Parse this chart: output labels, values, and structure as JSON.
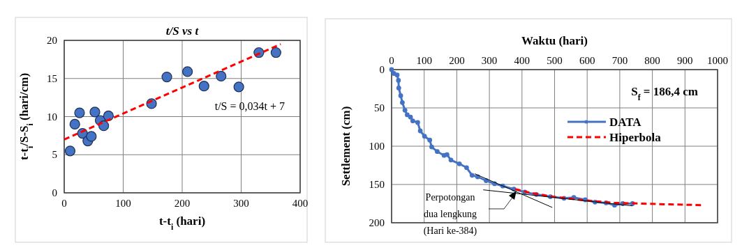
{
  "chart_data": [
    {
      "type": "scatter",
      "title": "t/S vs t",
      "xlabel": "t-t$_{i}$ (hari)",
      "ylabel": "t-t$_{i}$/S-S$_{i}$ (hari/cm)",
      "xlim": [
        0,
        400
      ],
      "xticks": [
        0,
        100,
        200,
        300,
        400
      ],
      "ylim": [
        0,
        20
      ],
      "yticks": [
        0,
        5,
        10,
        15,
        20
      ],
      "grid": true,
      "marker": "circle",
      "series": [
        {
          "color": "#4472c4",
          "x": [
            10,
            18,
            26,
            31,
            40,
            46,
            52,
            61,
            67,
            75,
            148,
            174,
            209,
            237,
            266,
            296,
            330,
            359
          ],
          "values": [
            5.5,
            9.0,
            10.5,
            7.8,
            6.8,
            7.4,
            10.6,
            9.5,
            8.8,
            10.1,
            11.7,
            15.2,
            15.9,
            14.0,
            15.3,
            13.9,
            18.4,
            18.4
          ]
        },
        {
          "type": "line",
          "color": "#ff0000",
          "line_style": "dashed",
          "marker": "none",
          "x": [
            0,
            367
          ],
          "values": [
            7,
            19.5
          ]
        }
      ],
      "annotations": [
        "t/S = 0,034t + 7"
      ]
    },
    {
      "type": "line",
      "xlabel": "Waktu (hari)",
      "ylabel": "Settlement (cm)",
      "xlim": [
        0,
        1000
      ],
      "xticks": [
        0,
        100,
        200,
        300,
        400,
        500,
        600,
        700,
        800,
        900,
        1000
      ],
      "ylim": [
        200,
        0
      ],
      "yticks": [
        0,
        50,
        100,
        150,
        200
      ],
      "grid": true,
      "legend": "right",
      "series": [
        {
          "name": "DATA",
          "color": "#4472c4",
          "marker": "circle",
          "line_style": "solid",
          "x": [
            0,
            7,
            17,
            21,
            22,
            28,
            33,
            41,
            48,
            58,
            65,
            80,
            88,
            101,
            117,
            123,
            140,
            161,
            170,
            182,
            208,
            230,
            247,
            264,
            290,
            316,
            341,
            375,
            409,
            444,
            487,
            529,
            559,
            594,
            624,
            658,
            684,
            709,
            739
          ],
          "values": [
            0,
            5,
            7,
            14,
            24,
            34,
            43,
            53,
            59,
            62,
            67,
            69,
            80,
            87,
            92,
            101,
            107,
            112,
            111,
            118,
            123,
            128,
            138,
            140,
            145,
            149,
            152,
            156,
            160,
            163,
            166,
            168,
            167,
            170,
            173,
            174,
            177,
            175,
            175
          ]
        },
        {
          "name": "Hiperbola",
          "color": "#ff0000",
          "marker": "none",
          "line_style": "dashed",
          "x": [
            379,
            427,
            495,
            598,
            684,
            769,
            855,
            953
          ],
          "values": [
            156,
            161,
            166,
            171,
            174,
            175,
            176,
            177
          ]
        },
        {
          "color": "#000000",
          "marker": "none",
          "line_style": "solid",
          "x": [
            255,
            493
          ],
          "values": [
            136,
            180
          ]
        },
        {
          "color": "#000000",
          "marker": "none",
          "line_style": "solid",
          "x": [
            281,
            739
          ],
          "values": [
            157,
            178
          ]
        }
      ],
      "annotations": [
        "S$_{f}$ = 186,4 cm",
        "Perpotongan\ndua lengkung\n(Hari ke-384)"
      ]
    }
  ]
}
